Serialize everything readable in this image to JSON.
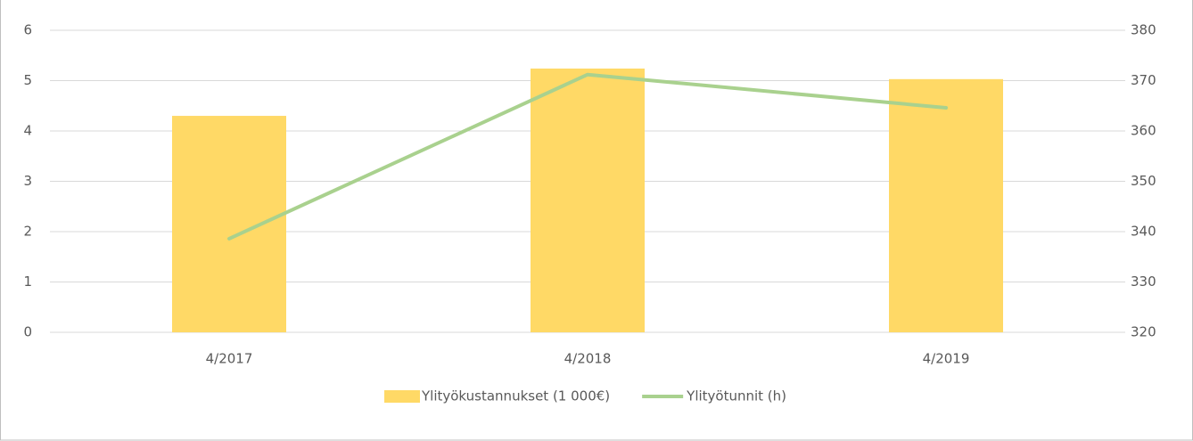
{
  "chart_data": {
    "type": "bar",
    "categories": [
      "4/2017",
      "4/2018",
      "4/2019"
    ],
    "series": [
      {
        "name": "Ylityökustannukset (1 000€)",
        "type": "bar",
        "color": "#ffd966",
        "values": [
          4.3,
          5.24,
          5.03
        ]
      },
      {
        "name": "Ylityötunnit (h)",
        "type": "line",
        "axis": "y2",
        "color": "#a9d18e",
        "values": [
          338.6,
          371.2,
          364.6
        ]
      }
    ],
    "ylim": [
      0,
      6
    ],
    "yticks": [
      0,
      1,
      2,
      3,
      4,
      5,
      6
    ],
    "y2lim": [
      320,
      380
    ],
    "y2ticks": [
      320,
      330,
      340,
      350,
      360,
      370,
      380
    ],
    "grid": true,
    "legend": "bottom"
  }
}
